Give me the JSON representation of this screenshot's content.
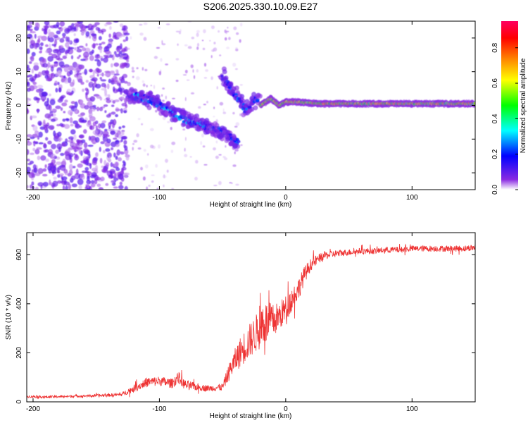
{
  "title": "S206.2025.330.10.09.E27",
  "chart_data": [
    {
      "type": "heatmap",
      "title": "S206.2025.330.10.09.E27",
      "xlabel": "Height of straight line (km)",
      "ylabel": "Frequency (Hz)",
      "xlim": [
        -205,
        150
      ],
      "ylim": [
        -25,
        25
      ],
      "xticks": [
        -200,
        -100,
        0,
        100
      ],
      "yticks": [
        -20,
        -10,
        0,
        10,
        20
      ],
      "colorbar": {
        "label": "Normalized spectral amplitude",
        "range": [
          0,
          0.95
        ],
        "ticks": [
          0.0,
          0.2,
          0.4,
          0.6,
          0.8
        ],
        "colormap": [
          "#ffffff",
          "#8a2be2",
          "#0000ff",
          "#00ffff",
          "#00ff00",
          "#ffff00",
          "#ff8000",
          "#ff0000",
          "#ff0060"
        ]
      },
      "features": [
        {
          "name": "diffuse noise",
          "x_range": [
            -205,
            -125
          ],
          "freq_range": [
            -25,
            25
          ],
          "amplitude": 0.1
        },
        {
          "name": "descending trace",
          "points": [
            [
              -125,
              3
            ],
            [
              -110,
              2
            ],
            [
              -95,
              -1
            ],
            [
              -80,
              -4
            ],
            [
              -65,
              -6
            ],
            [
              -50,
              -8
            ],
            [
              -38,
              -11
            ]
          ],
          "amplitude": 0.25
        },
        {
          "name": "steep branch",
          "points": [
            [
              -50,
              9
            ],
            [
              -42,
              4
            ],
            [
              -32,
              -1
            ],
            [
              -22,
              2
            ]
          ],
          "amplitude": 0.2
        },
        {
          "name": "converging line",
          "points": [
            [
              -20,
              0
            ],
            [
              -12,
              2
            ],
            [
              -5,
              0
            ],
            [
              0,
              1
            ],
            [
              10,
              1
            ],
            [
              25,
              0.5
            ],
            [
              150,
              0.5
            ]
          ],
          "amplitude": 0.8
        }
      ]
    },
    {
      "type": "line",
      "xlabel": "Height of straight line (km)",
      "ylabel": "SNR (10 * v/v)",
      "xlim": [
        -205,
        150
      ],
      "ylim": [
        0,
        690
      ],
      "xticks": [
        -200,
        -100,
        0,
        100
      ],
      "yticks": [
        0,
        200,
        400,
        600
      ],
      "color": "#ee3333",
      "series": [
        {
          "name": "SNR",
          "x": [
            -205,
            -190,
            -175,
            -160,
            -145,
            -130,
            -120,
            -110,
            -100,
            -90,
            -85,
            -80,
            -70,
            -60,
            -50,
            -45,
            -40,
            -35,
            -30,
            -25,
            -20,
            -18,
            -15,
            -10,
            -5,
            0,
            5,
            10,
            15,
            20,
            25,
            30,
            35,
            40,
            50,
            60,
            70,
            80,
            90,
            100,
            110,
            120,
            130,
            140,
            150
          ],
          "y": [
            22,
            20,
            22,
            24,
            26,
            30,
            55,
            80,
            85,
            75,
            100,
            70,
            60,
            55,
            60,
            120,
            170,
            210,
            240,
            270,
            300,
            330,
            320,
            330,
            350,
            380,
            420,
            460,
            520,
            560,
            580,
            595,
            600,
            605,
            610,
            615,
            615,
            620,
            620,
            625,
            625,
            625,
            625,
            625,
            630
          ],
          "spread": [
            10,
            10,
            10,
            10,
            12,
            15,
            30,
            40,
            40,
            40,
            50,
            40,
            30,
            25,
            30,
            70,
            100,
            130,
            140,
            150,
            170,
            200,
            180,
            140,
            120,
            110,
            100,
            90,
            70,
            50,
            40,
            35,
            30,
            30,
            25,
            25,
            25,
            25,
            25,
            25,
            25,
            25,
            25,
            25,
            25
          ]
        }
      ]
    }
  ]
}
